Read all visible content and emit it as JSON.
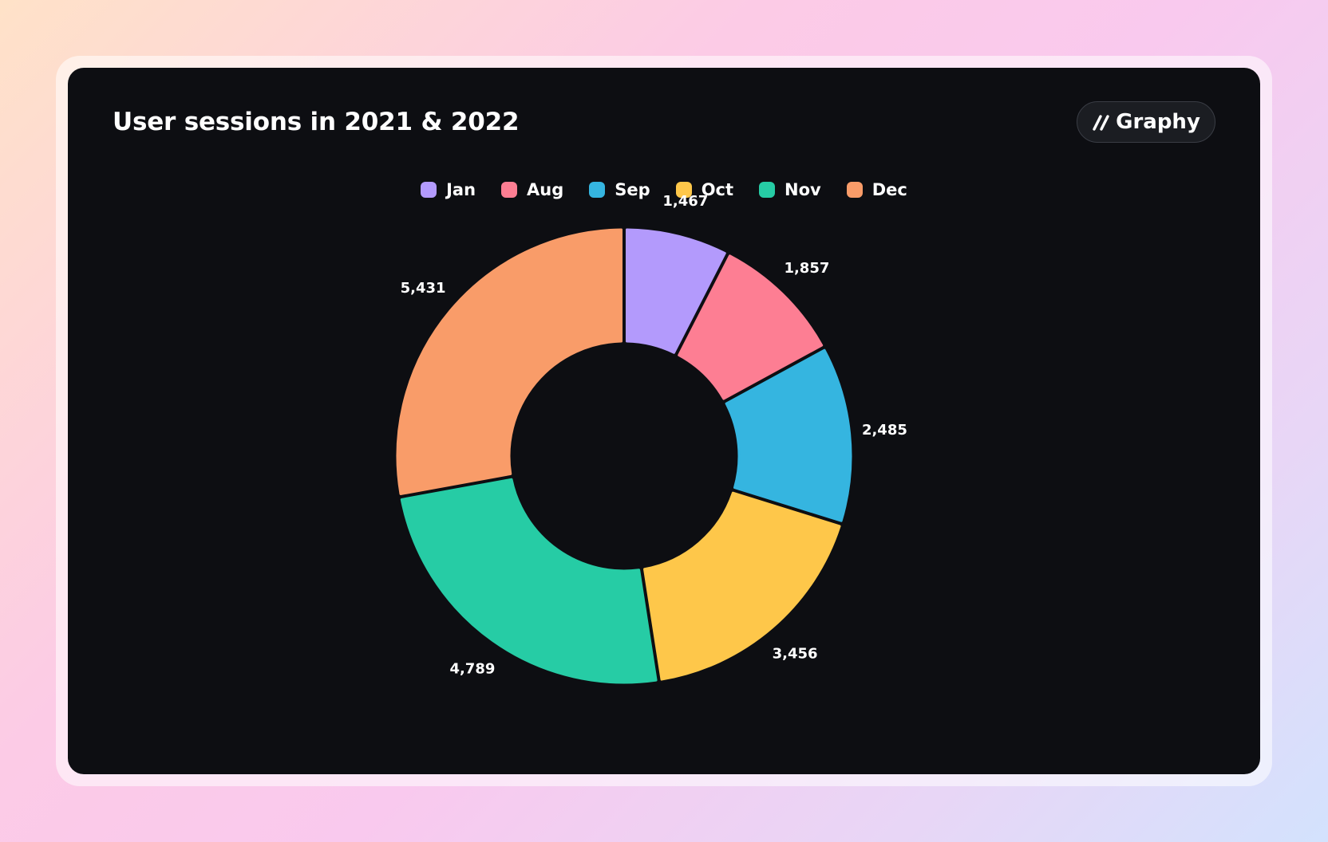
{
  "title": "User sessions in 2021 & 2022",
  "brand": {
    "name": "Graphy",
    "icon": "graphy-slashes-icon"
  },
  "chart_data": {
    "type": "pie",
    "variant": "donut",
    "title": "User sessions in 2021 & 2022",
    "legend_position": "top-center",
    "categories": [
      "Jan",
      "Aug",
      "Sep",
      "Oct",
      "Nov",
      "Dec"
    ],
    "values": [
      1467,
      1857,
      2485,
      3456,
      4789,
      5431
    ],
    "labels": [
      "1,467",
      "1,857",
      "2,485",
      "3,456",
      "4,789",
      "5,431"
    ],
    "colors": [
      "#b39afc",
      "#fd7e93",
      "#35b5e0",
      "#fec74a",
      "#26cca5",
      "#f99c69"
    ]
  }
}
